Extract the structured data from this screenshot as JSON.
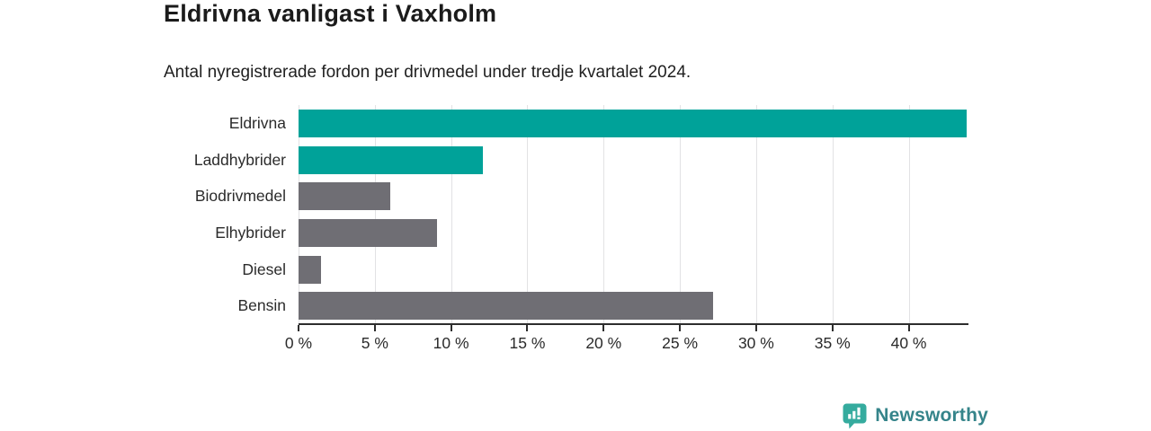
{
  "title": "Eldrivna vanligast i Vaxholm",
  "subtitle": "Antal nyregistrerade fordon per drivmedel under tredje kvartalet 2024.",
  "chart_data": {
    "type": "bar",
    "orientation": "horizontal",
    "title": "Eldrivna vanligast i Vaxholm",
    "subtitle": "Antal nyregistrerade fordon per drivmedel under tredje kvartalet 2024.",
    "categories": [
      "Eldrivna",
      "Laddhybrider",
      "Biodrivmedel",
      "Elhybrider",
      "Diesel",
      "Bensin"
    ],
    "values": [
      43.8,
      12.1,
      6.0,
      9.1,
      1.5,
      27.2
    ],
    "unit": "%",
    "bar_colors": [
      "#00a299",
      "#00a299",
      "#6f6e74",
      "#6f6e74",
      "#6f6e74",
      "#6f6e74"
    ],
    "xlim": [
      0,
      43.8
    ],
    "x_tick_values": [
      0,
      5,
      10,
      15,
      20,
      25,
      30,
      35,
      40
    ],
    "x_ticks": [
      "0 %",
      "5 %",
      "10 %",
      "15 %",
      "20 %",
      "25 %",
      "30 %",
      "35 %",
      "40 %"
    ],
    "grid": "vertical-gridlines-behind-bars",
    "legend": "none"
  },
  "branding": {
    "logo_text": "Newsworthy",
    "wordmark_color": "#35848a",
    "icon_color": "#35ab9e"
  },
  "colors": {
    "accent_teal": "#00a299",
    "bar_gray": "#6f6e74",
    "gridline": "#e2e2e4",
    "axis": "#2d2d2d",
    "background": "#ffffff"
  }
}
